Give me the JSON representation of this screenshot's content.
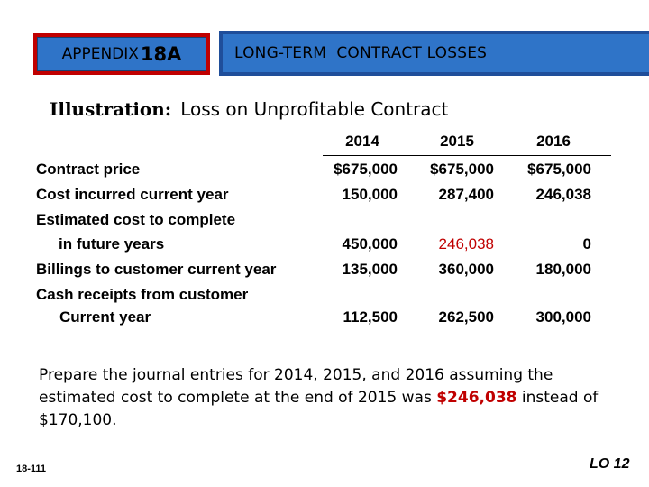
{
  "header": {
    "appendix_label": "APPENDIX",
    "appendix_number": "18A",
    "topic": "LONG-TERM  CONTRACT LOSSES"
  },
  "illustration": {
    "label": "Illustration:",
    "title": "Loss on Unprofitable Contract"
  },
  "table": {
    "columns": [
      "2014",
      "2015",
      "2016"
    ],
    "rows": [
      {
        "label": "Contract price",
        "values": [
          "$675,000",
          "$675,000",
          "$675,000"
        ]
      },
      {
        "label": "Cost incurred current year",
        "values": [
          "150,000",
          "287,400",
          "246,038"
        ]
      },
      {
        "label": "Estimated cost to complete",
        "values": []
      },
      {
        "label": "in future years",
        "values": [
          "450,000",
          "246,038",
          "0"
        ]
      },
      {
        "label": "Billings to customer current year",
        "values": [
          "135,000",
          "360,000",
          "180,000"
        ]
      },
      {
        "label": "Cash receipts from customer",
        "values": []
      },
      {
        "label": "Current year",
        "values": [
          "112,500",
          "262,500",
          "300,000"
        ]
      }
    ],
    "highlight_color": "#c00000"
  },
  "instructions": {
    "before": "Prepare the journal entries for 2014, 2015, and 2016 assuming the estimated cost to complete at the end of 2015 was ",
    "highlight": "$246,038",
    "after": " instead of $170,100."
  },
  "footer": {
    "slide_number": "18-111",
    "learning_objective": "LO 12"
  }
}
